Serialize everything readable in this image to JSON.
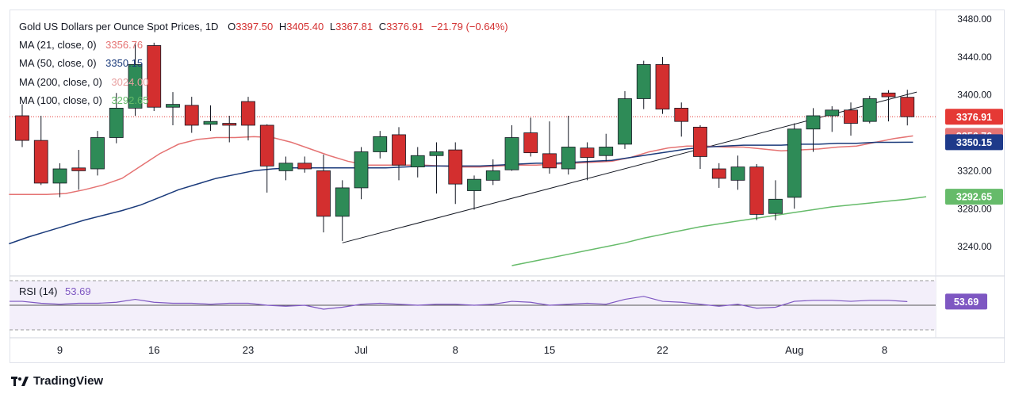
{
  "header": {
    "symbol": "Gold US Dollars per Ounce Spot Prices, 1D",
    "open_key": "O",
    "open": "3397.50",
    "high_key": "H",
    "high": "3405.40",
    "low_key": "L",
    "low": "3367.81",
    "close_key": "C",
    "close": "3376.91",
    "change": "−21.79 (−0.64%)"
  },
  "indicators": [
    {
      "label": "MA (21, close, 0)",
      "value": "3356.76",
      "color": "#e57373"
    },
    {
      "label": "MA (50, close, 0)",
      "value": "3350.15",
      "color": "#1a3a7a"
    },
    {
      "label": "MA (200, close, 0)",
      "value": "3024.00",
      "color": "#e8a0a0"
    },
    {
      "label": "MA (100, close, 0)",
      "value": "3292.65",
      "color": "#66bb6a"
    }
  ],
  "rsi": {
    "label": "RSI (14)",
    "value": "53.69",
    "color": "#7e57c2"
  },
  "price_axis": {
    "ticks": [
      "3480.00",
      "3440.00",
      "3400.00",
      "3320.00",
      "3280.00",
      "3240.00"
    ],
    "badges": [
      {
        "text": "3376.91",
        "color": "#e53935"
      },
      {
        "text": "3356.76",
        "color": "#e57373"
      },
      {
        "text": "3350.15",
        "color": "#1e3a8a"
      },
      {
        "text": "3292.65",
        "color": "#66bb6a"
      }
    ],
    "rsi_badge": "53.69"
  },
  "time_axis": [
    "9",
    "16",
    "23",
    "Jul",
    "8",
    "15",
    "22",
    "Aug",
    "8"
  ],
  "brand": "TradingView",
  "chart_data": {
    "type": "candlestick",
    "ylim": [
      3210,
      3490
    ],
    "candles": [
      {
        "o": 3378,
        "h": 3390,
        "l": 3345,
        "c": 3352
      },
      {
        "o": 3352,
        "h": 3378,
        "l": 3305,
        "c": 3307
      },
      {
        "o": 3307,
        "h": 3328,
        "l": 3292,
        "c": 3322
      },
      {
        "o": 3323,
        "h": 3342,
        "l": 3300,
        "c": 3320
      },
      {
        "o": 3322,
        "h": 3362,
        "l": 3315,
        "c": 3355
      },
      {
        "o": 3355,
        "h": 3402,
        "l": 3349,
        "c": 3386
      },
      {
        "o": 3386,
        "h": 3455,
        "l": 3378,
        "c": 3432
      },
      {
        "o": 3452,
        "h": 3455,
        "l": 3383,
        "c": 3387
      },
      {
        "o": 3387,
        "h": 3403,
        "l": 3368,
        "c": 3390
      },
      {
        "o": 3389,
        "h": 3398,
        "l": 3360,
        "c": 3368
      },
      {
        "o": 3369,
        "h": 3389,
        "l": 3362,
        "c": 3372
      },
      {
        "o": 3370,
        "h": 3378,
        "l": 3350,
        "c": 3368
      },
      {
        "o": 3393,
        "h": 3398,
        "l": 3352,
        "c": 3368
      },
      {
        "o": 3368,
        "h": 3369,
        "l": 3297,
        "c": 3325
      },
      {
        "o": 3320,
        "h": 3335,
        "l": 3310,
        "c": 3328
      },
      {
        "o": 3328,
        "h": 3335,
        "l": 3318,
        "c": 3322
      },
      {
        "o": 3320,
        "h": 3337,
        "l": 3255,
        "c": 3272
      },
      {
        "o": 3272,
        "h": 3310,
        "l": 3246,
        "c": 3302
      },
      {
        "o": 3302,
        "h": 3345,
        "l": 3290,
        "c": 3340
      },
      {
        "o": 3340,
        "h": 3362,
        "l": 3333,
        "c": 3356
      },
      {
        "o": 3358,
        "h": 3366,
        "l": 3310,
        "c": 3326
      },
      {
        "o": 3324,
        "h": 3345,
        "l": 3313,
        "c": 3336
      },
      {
        "o": 3336,
        "h": 3350,
        "l": 3296,
        "c": 3340
      },
      {
        "o": 3342,
        "h": 3350,
        "l": 3285,
        "c": 3306
      },
      {
        "o": 3299,
        "h": 3315,
        "l": 3279,
        "c": 3311
      },
      {
        "o": 3310,
        "h": 3332,
        "l": 3305,
        "c": 3320
      },
      {
        "o": 3321,
        "h": 3368,
        "l": 3320,
        "c": 3355
      },
      {
        "o": 3360,
        "h": 3376,
        "l": 3335,
        "c": 3339
      },
      {
        "o": 3338,
        "h": 3372,
        "l": 3317,
        "c": 3323
      },
      {
        "o": 3322,
        "h": 3378,
        "l": 3316,
        "c": 3345
      },
      {
        "o": 3344,
        "h": 3350,
        "l": 3310,
        "c": 3334
      },
      {
        "o": 3336,
        "h": 3359,
        "l": 3330,
        "c": 3345
      },
      {
        "o": 3348,
        "h": 3404,
        "l": 3343,
        "c": 3396
      },
      {
        "o": 3396,
        "h": 3436,
        "l": 3385,
        "c": 3432
      },
      {
        "o": 3432,
        "h": 3440,
        "l": 3380,
        "c": 3385
      },
      {
        "o": 3386,
        "h": 3392,
        "l": 3356,
        "c": 3372
      },
      {
        "o": 3366,
        "h": 3368,
        "l": 3322,
        "c": 3335
      },
      {
        "o": 3322,
        "h": 3328,
        "l": 3302,
        "c": 3312
      },
      {
        "o": 3310,
        "h": 3336,
        "l": 3300,
        "c": 3324
      },
      {
        "o": 3324,
        "h": 3327,
        "l": 3268,
        "c": 3274
      },
      {
        "o": 3275,
        "h": 3310,
        "l": 3268,
        "c": 3290
      },
      {
        "o": 3292,
        "h": 3370,
        "l": 3280,
        "c": 3364
      },
      {
        "o": 3364,
        "h": 3386,
        "l": 3340,
        "c": 3378
      },
      {
        "o": 3378,
        "h": 3388,
        "l": 3361,
        "c": 3384
      },
      {
        "o": 3384,
        "h": 3392,
        "l": 3357,
        "c": 3370
      },
      {
        "o": 3372,
        "h": 3399,
        "l": 3370,
        "c": 3396
      },
      {
        "o": 3402,
        "h": 3405,
        "l": 3372,
        "c": 3398
      },
      {
        "o": 3397.5,
        "h": 3405.4,
        "l": 3367.81,
        "c": 3376.91
      }
    ],
    "ma21": [
      3295,
      3295,
      3296,
      3300,
      3305,
      3312,
      3325,
      3338,
      3348,
      3353,
      3355,
      3355,
      3356,
      3355,
      3350,
      3343,
      3336,
      3330,
      3326,
      3326,
      3326,
      3326,
      3325,
      3324,
      3324,
      3325,
      3326,
      3326,
      3327,
      3328,
      3329,
      3330,
      3334,
      3340,
      3344,
      3346,
      3346,
      3345,
      3345,
      3343,
      3341,
      3342,
      3343,
      3345,
      3346,
      3350,
      3354,
      3356.76
    ],
    "ma50": [
      3250,
      3256,
      3262,
      3268,
      3273,
      3278,
      3284,
      3292,
      3300,
      3306,
      3312,
      3316,
      3320,
      3322,
      3323,
      3323,
      3323,
      3323,
      3323,
      3323,
      3324,
      3325,
      3325,
      3325,
      3325,
      3326,
      3327,
      3328,
      3328,
      3329,
      3330,
      3331,
      3334,
      3337,
      3340,
      3343,
      3345,
      3346,
      3347,
      3347,
      3347,
      3348,
      3348,
      3349,
      3349,
      3350,
      3350,
      3350.15
    ],
    "ma100_partial": {
      "start_index": 26,
      "values": [
        3220,
        3224,
        3228,
        3232,
        3236,
        3240,
        3244,
        3249,
        3253,
        3257,
        3261,
        3264,
        3267,
        3270,
        3273,
        3276,
        3279,
        3282,
        3284,
        3286,
        3288,
        3290,
        3292.65
      ]
    },
    "trendline": {
      "from": {
        "index": 17,
        "price": 3244
      },
      "to": {
        "index": 47.5,
        "price": 3403
      }
    },
    "rsi_values": [
      54,
      52,
      51,
      52,
      52,
      53,
      56,
      53,
      52,
      52,
      51,
      52,
      52,
      50,
      49,
      50,
      46,
      48,
      51,
      52,
      51,
      50,
      51,
      51,
      50,
      51,
      54,
      53,
      50,
      51,
      52,
      51,
      56,
      59,
      54,
      53,
      51,
      49,
      51,
      47,
      48,
      54,
      55,
      55,
      54,
      55,
      55,
      53.69
    ],
    "rsi_levels": [
      70,
      50,
      30
    ]
  }
}
